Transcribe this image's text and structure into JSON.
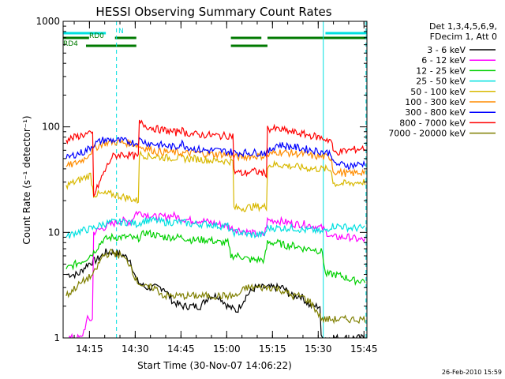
{
  "chart_data": {
    "type": "line",
    "title": "HESSI Observing Summary Count Rates",
    "xlabel": "Start Time (30-Nov-07 14:06:22)",
    "ylabel": "Count Rate (s⁻¹ detector⁻¹)",
    "x_axis": {
      "unit": "minutes since 14:06:22",
      "range": [
        0,
        99.6
      ],
      "tick_labels": [
        "14:15",
        "14:30",
        "14:45",
        "15:00",
        "15:15",
        "15:30",
        "15:45"
      ]
    },
    "y_axis": {
      "scale": "log",
      "range": [
        1,
        1000
      ],
      "tick_labels": [
        "1",
        "10",
        "100",
        "1000"
      ]
    },
    "grid": false,
    "legend_position": "right",
    "legend_header": [
      "Det 1,3,4,5,6,9,",
      "FDecim 1, Att 0"
    ],
    "footer_date": "26-Feb-2010 15:59",
    "vertical_markers": [
      {
        "x": 17.5,
        "style": "dashed",
        "color": "#00e0e0"
      },
      {
        "x": 85.3,
        "style": "solid",
        "color": "#00e0e0"
      },
      {
        "x": 99.3,
        "style": "dashed",
        "color": "#00e0e0"
      }
    ],
    "flags": [
      {
        "label": "N",
        "color": "#00e0e0",
        "segments": [
          [
            0,
            14
          ],
          [
            86,
            99.6
          ]
        ]
      },
      {
        "label": "RD0",
        "color": "#007a00",
        "segments": [
          [
            0,
            8.5
          ],
          [
            17,
            24
          ],
          [
            55,
            65
          ],
          [
            67,
            99.6
          ]
        ]
      },
      {
        "label": "RD4",
        "color": "#007a00",
        "segments": [
          [
            7.5,
            24
          ],
          [
            55,
            67
          ]
        ]
      }
    ],
    "series": [
      {
        "name": "3 - 6 keV",
        "color": "#000000",
        "x": [
          1,
          5,
          8,
          11,
          14,
          17,
          20,
          22,
          24,
          27,
          30,
          33,
          36,
          39,
          42,
          45,
          48,
          51,
          54,
          57,
          60,
          63,
          66,
          69,
          72,
          75,
          78,
          81,
          85,
          88,
          91,
          94,
          97,
          99
        ],
        "y": [
          4,
          4,
          5,
          5.5,
          6.5,
          6.5,
          6,
          5.5,
          3.5,
          3,
          3,
          3,
          2.2,
          2,
          2,
          2,
          2.5,
          2.5,
          2,
          1.8,
          2.5,
          3,
          3,
          3,
          3,
          2.5,
          2.5,
          2,
          1,
          1,
          1,
          1,
          1,
          1
        ]
      },
      {
        "name": "6 - 12 keV",
        "color": "#ff00ff",
        "x": [
          1,
          4,
          6,
          8,
          10,
          13,
          16,
          19,
          22,
          24,
          27,
          30,
          33,
          36,
          39,
          42,
          45,
          48,
          51,
          54,
          55,
          58,
          61,
          64,
          66,
          67,
          70,
          73,
          76,
          79,
          82,
          85,
          88,
          91,
          94,
          97,
          99
        ],
        "y": [
          1,
          1,
          1,
          1.5,
          10,
          11,
          12,
          13,
          12.5,
          15.5,
          15,
          14,
          14,
          14.5,
          13.5,
          13,
          13,
          12.5,
          12,
          11.5,
          11,
          10.5,
          10,
          9.5,
          9.5,
          13,
          13,
          12.5,
          12,
          12,
          11.5,
          11,
          9,
          9,
          9,
          8.5,
          8.5
        ]
      },
      {
        "name": "12 - 25 keV",
        "color": "#00d000",
        "x": [
          1,
          4,
          7,
          10,
          13,
          16,
          19,
          22,
          24,
          27,
          30,
          33,
          36,
          39,
          42,
          45,
          48,
          51,
          54,
          55,
          58,
          61,
          64,
          66,
          67,
          70,
          73,
          76,
          79,
          82,
          85,
          86,
          89,
          92,
          95,
          99
        ],
        "y": [
          4.5,
          5,
          5.5,
          6.5,
          8.5,
          9,
          9,
          9,
          8.5,
          10,
          9.5,
          9,
          9,
          9,
          8.5,
          8.5,
          8.5,
          8,
          8,
          6,
          6,
          5.5,
          5.5,
          5.5,
          8,
          8,
          7.5,
          7.5,
          7,
          7,
          6.5,
          4,
          4,
          3.8,
          3.5,
          3.5
        ]
      },
      {
        "name": "25 - 50 keV",
        "color": "#00e0e0",
        "x": [
          1,
          4,
          7,
          10,
          13,
          16,
          19,
          22,
          24,
          27,
          30,
          33,
          36,
          39,
          42,
          45,
          48,
          51,
          54,
          55,
          58,
          61,
          64,
          66,
          67,
          70,
          73,
          76,
          79,
          82,
          85,
          88,
          91,
          94,
          97,
          99
        ],
        "y": [
          9,
          10,
          10.5,
          11,
          12,
          12.5,
          12.5,
          12.5,
          12,
          13,
          13,
          12.5,
          12.5,
          12.5,
          12,
          12,
          12,
          11.5,
          11.5,
          10,
          10,
          9.5,
          9.5,
          9.5,
          11,
          11,
          11,
          11,
          10.5,
          10.5,
          10,
          11.5,
          11.5,
          11,
          11,
          11
        ]
      },
      {
        "name": "50 - 100 keV",
        "color": "#d8b800",
        "x": [
          1,
          4,
          7,
          9,
          10,
          13,
          16,
          19,
          22,
          24,
          25,
          28,
          31,
          34,
          37,
          40,
          43,
          46,
          49,
          52,
          55,
          56,
          59,
          62,
          65,
          66,
          67,
          70,
          73,
          76,
          79,
          82,
          85,
          88,
          88.5,
          91,
          94,
          97,
          99
        ],
        "y": [
          28,
          30,
          33,
          35,
          23,
          23,
          23,
          22,
          21,
          20,
          55,
          53,
          52,
          51,
          51,
          50,
          50,
          49,
          48,
          48,
          47,
          17,
          17,
          17.5,
          17.5,
          17.5,
          43,
          44,
          43,
          42,
          41,
          40,
          40,
          39,
          29,
          29,
          29,
          30,
          30
        ]
      },
      {
        "name": "100 - 300 keV",
        "color": "#ff8c00",
        "x": [
          1,
          4,
          7,
          10,
          13,
          16,
          19,
          22,
          24,
          25,
          28,
          31,
          34,
          37,
          40,
          43,
          46,
          49,
          52,
          55,
          56,
          59,
          62,
          65,
          66,
          67,
          70,
          73,
          76,
          79,
          82,
          85,
          88,
          88.5,
          91,
          94,
          97,
          99
        ],
        "y": [
          42,
          45,
          50,
          62,
          70,
          72,
          71,
          70,
          68,
          65,
          62,
          58,
          58,
          57,
          56,
          57,
          56,
          55,
          55,
          54,
          52,
          52,
          53,
          53,
          53,
          53,
          58,
          57,
          56,
          55,
          53,
          52,
          51,
          38,
          37,
          36,
          37,
          38
        ]
      },
      {
        "name": "300 - 800 keV",
        "color": "#0000ff",
        "x": [
          1,
          4,
          7,
          10,
          13,
          16,
          19,
          22,
          24,
          25,
          28,
          31,
          34,
          37,
          38,
          39,
          40,
          43,
          46,
          49,
          52,
          55,
          56,
          59,
          62,
          65,
          66,
          67,
          70,
          73,
          76,
          79,
          82,
          85,
          88,
          88.5,
          91,
          94,
          97,
          99
        ],
        "y": [
          50,
          55,
          58,
          68,
          75,
          75,
          74,
          72,
          70,
          75,
          70,
          68,
          66,
          64,
          68,
          70,
          66,
          62,
          60,
          60,
          59,
          58,
          57,
          57,
          57,
          57,
          57,
          57,
          68,
          66,
          64,
          62,
          60,
          58,
          56,
          45,
          44,
          43,
          44,
          45
        ]
      },
      {
        "name": "800 - 7000 keV",
        "color": "#ff0000",
        "x": [
          1,
          4,
          7,
          9,
          10,
          13,
          16,
          19,
          22,
          24,
          25,
          28,
          31,
          34,
          37,
          38,
          39,
          40,
          43,
          46,
          49,
          52,
          55,
          56,
          59,
          62,
          65,
          66,
          67,
          70,
          73,
          76,
          79,
          82,
          85,
          88,
          88.5,
          91,
          94,
          97,
          99
        ],
        "y": [
          75,
          80,
          85,
          85,
          22,
          35,
          52,
          55,
          54,
          52,
          110,
          100,
          95,
          92,
          88,
          95,
          92,
          88,
          85,
          84,
          83,
          82,
          83,
          38,
          36,
          38,
          37,
          36,
          96,
          95,
          92,
          88,
          85,
          82,
          78,
          74,
          58,
          58,
          60,
          62,
          63
        ]
      },
      {
        "name": "7000 - 20000 keV",
        "color": "#7f7f00",
        "x": [
          1,
          4,
          7,
          10,
          13,
          16,
          19,
          22,
          24,
          27,
          30,
          33,
          36,
          39,
          42,
          45,
          48,
          51,
          54,
          57,
          60,
          63,
          66,
          69,
          72,
          75,
          78,
          81,
          85,
          88,
          91,
          94,
          97,
          99
        ],
        "y": [
          2.5,
          3,
          3.5,
          4,
          6,
          6.5,
          6,
          5,
          3.5,
          3,
          3,
          2.5,
          2.5,
          2.5,
          2.5,
          2.5,
          2.5,
          2.5,
          2.5,
          2.5,
          3,
          3,
          3,
          3,
          2.8,
          2.5,
          2.5,
          2.2,
          1.5,
          1.5,
          1.5,
          1.5,
          1.5,
          1.5
        ]
      }
    ]
  }
}
